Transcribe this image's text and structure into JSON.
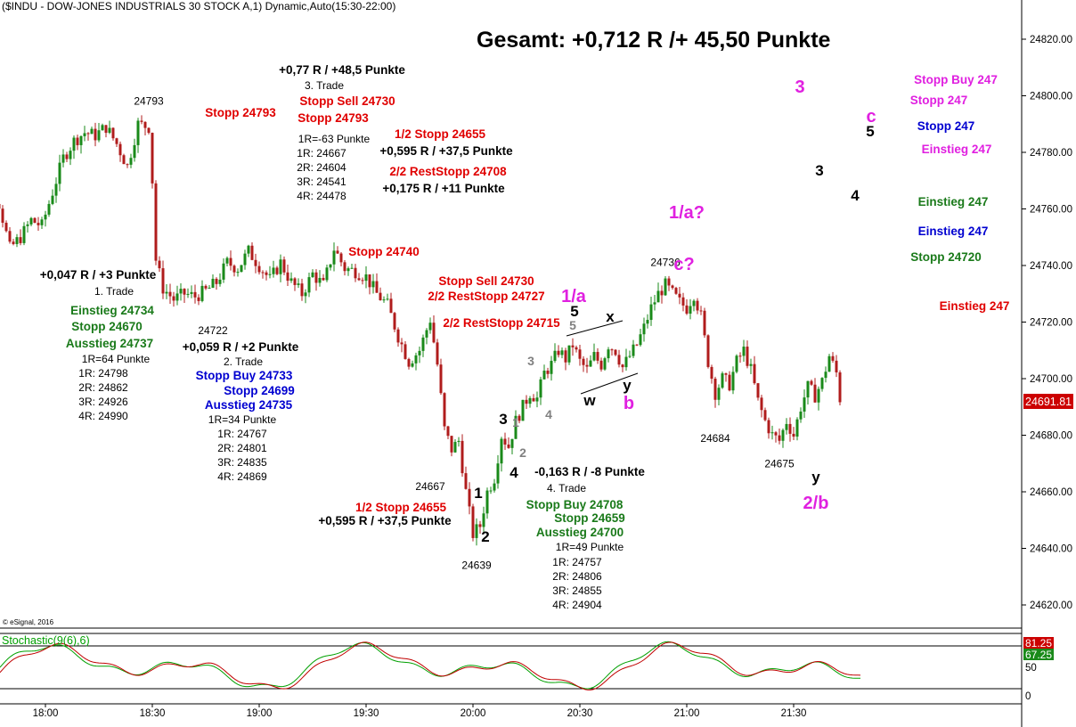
{
  "header": {
    "title": "($INDU - DOW-JONES INDUSTRIALS 30 STOCK A,1) Dynamic,Auto(15:30-22:00)",
    "summary": "Gesamt: +0,712 R /+ 45,50 Punkte",
    "copyright": "© eSignal, 2016"
  },
  "colors": {
    "up_candle": "#1a8a1a",
    "down_candle": "#b01c1c",
    "red": "#e00000",
    "green": "#1a7a1a",
    "blue": "#0000d0",
    "magenta": "#e020e0",
    "gray": "#808080",
    "price_tag_bg": "#cc0000",
    "stoch_k": "#c00000",
    "stoch_d": "#00a000"
  },
  "chart_data": [
    {
      "type": "candlestick",
      "title": "($INDU - DOW-JONES INDUSTRIALS 30 STOCK A,1) Dynamic,Auto(15:30-22:00)",
      "interval": "1 minute",
      "x_ticks": [
        "18:00",
        "18:30",
        "19:00",
        "19:30",
        "20:00",
        "20:30",
        "21:00",
        "21:30"
      ],
      "y_ticks": [
        24620,
        24640,
        24660,
        24680,
        24700,
        24720,
        24740,
        24760,
        24780,
        24800,
        24820
      ],
      "y_tick_labels": [
        "24620.00",
        "24640.00",
        "24660.00",
        "24680.00",
        "24700.00",
        "24720.00",
        "24740.00",
        "24760.00",
        "24780.00",
        "24800.00",
        "24820.00"
      ],
      "ylim": [
        24608,
        24838
      ],
      "last_price": "24691.81",
      "labeled_points": [
        {
          "time": "18:29",
          "price": 24793,
          "label": "24793"
        },
        {
          "time": "18:47",
          "price": 24722,
          "label": "24722"
        },
        {
          "time": "19:48",
          "price": 24667,
          "label": "24667"
        },
        {
          "time": "20:01",
          "price": 24639,
          "label": "24639"
        },
        {
          "time": "20:54",
          "price": 24736,
          "label": "24736"
        },
        {
          "time": "21:08",
          "price": 24684,
          "label": "24684"
        },
        {
          "time": "21:26",
          "price": 24675,
          "label": "24675"
        }
      ],
      "price_path": [
        [
          "17:38",
          24772
        ],
        [
          "17:41",
          24760
        ],
        [
          "17:44",
          24768
        ],
        [
          "17:47",
          24762
        ],
        [
          "17:50",
          24746
        ],
        [
          "17:53",
          24750
        ],
        [
          "17:56",
          24756
        ],
        [
          "17:59",
          24754
        ],
        [
          "18:02",
          24766
        ],
        [
          "18:05",
          24778
        ],
        [
          "18:08",
          24784
        ],
        [
          "18:11",
          24787
        ],
        [
          "18:14",
          24786
        ],
        [
          "18:17",
          24789
        ],
        [
          "18:20",
          24783
        ],
        [
          "18:23",
          24775
        ],
        [
          "18:26",
          24790
        ],
        [
          "18:29",
          24789
        ],
        [
          "18:30",
          24770
        ],
        [
          "18:31",
          24742
        ],
        [
          "18:33",
          24732
        ],
        [
          "18:36",
          24728
        ],
        [
          "18:39",
          24730
        ],
        [
          "18:42",
          24729
        ],
        [
          "18:45",
          24731
        ],
        [
          "18:48",
          24734
        ],
        [
          "18:51",
          24741
        ],
        [
          "18:54",
          24739
        ],
        [
          "18:57",
          24745
        ],
        [
          "19:00",
          24740
        ],
        [
          "19:03",
          24735
        ],
        [
          "19:06",
          24741
        ],
        [
          "19:09",
          24734
        ],
        [
          "19:12",
          24730
        ],
        [
          "19:15",
          24737
        ],
        [
          "19:18",
          24733
        ],
        [
          "19:21",
          24746
        ],
        [
          "19:24",
          24739
        ],
        [
          "19:27",
          24738
        ],
        [
          "19:30",
          24736
        ],
        [
          "19:33",
          24730
        ],
        [
          "19:36",
          24726
        ],
        [
          "19:39",
          24715
        ],
        [
          "19:42",
          24706
        ],
        [
          "19:45",
          24710
        ],
        [
          "19:48",
          24721
        ],
        [
          "19:50",
          24705
        ],
        [
          "19:52",
          24682
        ],
        [
          "19:54",
          24675
        ],
        [
          "19:56",
          24678
        ],
        [
          "19:58",
          24660
        ],
        [
          "20:00",
          24645
        ],
        [
          "20:02",
          24648
        ],
        [
          "20:04",
          24660
        ],
        [
          "20:06",
          24665
        ],
        [
          "20:08",
          24680
        ],
        [
          "20:10",
          24676
        ],
        [
          "20:12",
          24685
        ],
        [
          "20:14",
          24690
        ],
        [
          "20:16",
          24695
        ],
        [
          "20:18",
          24693
        ],
        [
          "20:20",
          24702
        ],
        [
          "20:22",
          24705
        ],
        [
          "20:24",
          24710
        ],
        [
          "20:26",
          24707
        ],
        [
          "20:28",
          24712
        ],
        [
          "20:30",
          24706
        ],
        [
          "20:32",
          24703
        ],
        [
          "20:34",
          24708
        ],
        [
          "20:36",
          24705
        ],
        [
          "20:38",
          24712
        ],
        [
          "20:40",
          24710
        ],
        [
          "20:42",
          24704
        ],
        [
          "20:44",
          24708
        ],
        [
          "20:46",
          24712
        ],
        [
          "20:48",
          24718
        ],
        [
          "20:50",
          24725
        ],
        [
          "20:52",
          24730
        ],
        [
          "20:54",
          24733
        ],
        [
          "20:56",
          24730
        ],
        [
          "20:58",
          24727
        ],
        [
          "21:00",
          24725
        ],
        [
          "21:02",
          24730
        ],
        [
          "21:04",
          24722
        ],
        [
          "21:06",
          24706
        ],
        [
          "21:08",
          24695
        ],
        [
          "21:10",
          24700
        ],
        [
          "21:12",
          24698
        ],
        [
          "21:14",
          24706
        ],
        [
          "21:16",
          24710
        ],
        [
          "21:18",
          24703
        ],
        [
          "21:20",
          24692
        ],
        [
          "21:22",
          24685
        ],
        [
          "21:24",
          24680
        ],
        [
          "21:26",
          24678
        ],
        [
          "21:28",
          24685
        ],
        [
          "21:30",
          24680
        ],
        [
          "21:32",
          24690
        ],
        [
          "21:34",
          24697
        ],
        [
          "21:36",
          24694
        ],
        [
          "21:38",
          24699
        ],
        [
          "21:40",
          24708
        ],
        [
          "21:42",
          24702
        ],
        [
          "21:43",
          24693
        ]
      ]
    },
    {
      "type": "line",
      "title": "Stochastic(9(6),6)",
      "y_ticks": [
        0,
        50
      ],
      "ylim": [
        -7,
        100
      ],
      "values_shown": [
        "81.25",
        "67.25"
      ],
      "reference_lines": [
        20,
        80
      ],
      "series": [
        {
          "name": "%K",
          "color": "#c00000"
        },
        {
          "name": "%D",
          "color": "#00a000"
        }
      ]
    }
  ],
  "annotations": [
    {
      "text": "+0,047 R / +3 Punkte",
      "color": "#000000"
    },
    {
      "text": "1. Trade",
      "color": "#000000",
      "small": true
    },
    {
      "text": "Einstieg 24734",
      "color": "#1a7a1a"
    },
    {
      "text": "Stopp 24670",
      "color": "#1a7a1a"
    },
    {
      "text": "Ausstieg 24737",
      "color": "#1a7a1a"
    },
    {
      "text": "1R=64 Punkte",
      "color": "#000000",
      "small": true
    },
    {
      "text": "1R: 24798",
      "color": "#000000",
      "small": true
    },
    {
      "text": "2R: 24862",
      "color": "#000000",
      "small": true
    },
    {
      "text": "3R: 24926",
      "color": "#000000",
      "small": true
    },
    {
      "text": "4R: 24990",
      "color": "#000000",
      "small": true
    },
    {
      "text": "Stopp 24793",
      "color": "#e00000"
    },
    {
      "text": "+0,059 R / +2 Punkte",
      "color": "#000000"
    },
    {
      "text": "2. Trade",
      "color": "#000000",
      "small": true
    },
    {
      "text": "Stopp Buy 24733",
      "color": "#0000d0"
    },
    {
      "text": "Stopp 24699",
      "color": "#0000d0"
    },
    {
      "text": "Ausstieg 24735",
      "color": "#0000d0"
    },
    {
      "text": "1R=34 Punkte",
      "color": "#000000",
      "small": true
    },
    {
      "text": "1R: 24767",
      "color": "#000000",
      "small": true
    },
    {
      "text": "2R: 24801",
      "color": "#000000",
      "small": true
    },
    {
      "text": "3R: 24835",
      "color": "#000000",
      "small": true
    },
    {
      "text": "4R: 24869",
      "color": "#000000",
      "small": true
    },
    {
      "text": "+0,77 R / +48,5 Punkte",
      "color": "#000000"
    },
    {
      "text": "3. Trade",
      "color": "#000000",
      "small": true
    },
    {
      "text": "Stopp Sell 24730",
      "color": "#e00000"
    },
    {
      "text": "Stopp 24793",
      "color": "#e00000"
    },
    {
      "text": "1R=-63 Punkte",
      "color": "#000000",
      "small": true
    },
    {
      "text": "1R: 24667",
      "color": "#000000",
      "small": true
    },
    {
      "text": "2R: 24604",
      "color": "#000000",
      "small": true
    },
    {
      "text": "3R: 24541",
      "color": "#000000",
      "small": true
    },
    {
      "text": "4R: 24478",
      "color": "#000000",
      "small": true
    },
    {
      "text": "1/2 Stopp 24655",
      "color": "#e00000"
    },
    {
      "text": "+0,595 R / +37,5 Punkte",
      "color": "#000000"
    },
    {
      "text": "2/2 RestStopp 24708",
      "color": "#e00000"
    },
    {
      "text": "+0,175 R / +11 Punkte",
      "color": "#000000"
    },
    {
      "text": "Stopp 24740",
      "color": "#e00000"
    },
    {
      "text": "Stopp Sell 24730",
      "color": "#e00000"
    },
    {
      "text": "2/2 RestStopp 24727",
      "color": "#e00000"
    },
    {
      "text": "2/2 RestStopp 24715",
      "color": "#e00000"
    },
    {
      "text": "1/2 Stopp 24655",
      "color": "#e00000"
    },
    {
      "text": "+0,595 R / +37,5 Punkte",
      "color": "#000000"
    },
    {
      "text": "-0,163 R / -8 Punkte",
      "color": "#000000"
    },
    {
      "text": "4. Trade",
      "color": "#000000",
      "small": true
    },
    {
      "text": "Stopp Buy 24708",
      "color": "#1a7a1a"
    },
    {
      "text": "Stopp 24659",
      "color": "#1a7a1a"
    },
    {
      "text": "Ausstieg 24700",
      "color": "#1a7a1a"
    },
    {
      "text": "1R=49 Punkte",
      "color": "#000000",
      "small": true
    },
    {
      "text": "1R: 24757",
      "color": "#000000",
      "small": true
    },
    {
      "text": "2R: 24806",
      "color": "#000000",
      "small": true
    },
    {
      "text": "3R: 24855",
      "color": "#000000",
      "small": true
    },
    {
      "text": "4R: 24904",
      "color": "#000000",
      "small": true
    },
    {
      "text": "Stopp Buy 247",
      "color": "#e020e0"
    },
    {
      "text": "Stopp 247",
      "color": "#e020e0"
    },
    {
      "text": "Stopp 247",
      "color": "#0000d0"
    },
    {
      "text": "Einstieg 247",
      "color": "#e020e0"
    },
    {
      "text": "Einstieg 247",
      "color": "#1a7a1a"
    },
    {
      "text": "Einstieg 247",
      "color": "#0000d0"
    },
    {
      "text": "Stopp 24720",
      "color": "#1a7a1a"
    },
    {
      "text": "Einstieg 247",
      "color": "#e00000"
    }
  ],
  "wave_labels": [
    {
      "text": "1",
      "color": "#000000"
    },
    {
      "text": "2",
      "color": "#000000"
    },
    {
      "text": "3",
      "color": "#000000"
    },
    {
      "text": "4",
      "color": "#000000"
    },
    {
      "text": "1",
      "color": "#808080"
    },
    {
      "text": "2",
      "color": "#808080"
    },
    {
      "text": "3",
      "color": "#808080"
    },
    {
      "text": "4",
      "color": "#808080"
    },
    {
      "text": "5",
      "color": "#808080"
    },
    {
      "text": "5",
      "color": "#000000"
    },
    {
      "text": "1/a",
      "color": "#e020e0"
    },
    {
      "text": "x",
      "color": "#000000"
    },
    {
      "text": "w",
      "color": "#000000"
    },
    {
      "text": "y",
      "color": "#000000"
    },
    {
      "text": "b",
      "color": "#e020e0"
    },
    {
      "text": "1/a?",
      "color": "#e020e0"
    },
    {
      "text": "c?",
      "color": "#e020e0"
    },
    {
      "text": "y",
      "color": "#000000"
    },
    {
      "text": "2/b",
      "color": "#e020e0"
    },
    {
      "text": "3",
      "color": "#e020e0"
    },
    {
      "text": "c",
      "color": "#e020e0"
    },
    {
      "text": "5",
      "color": "#000000"
    },
    {
      "text": "3",
      "color": "#000000"
    },
    {
      "text": "4",
      "color": "#000000"
    }
  ]
}
